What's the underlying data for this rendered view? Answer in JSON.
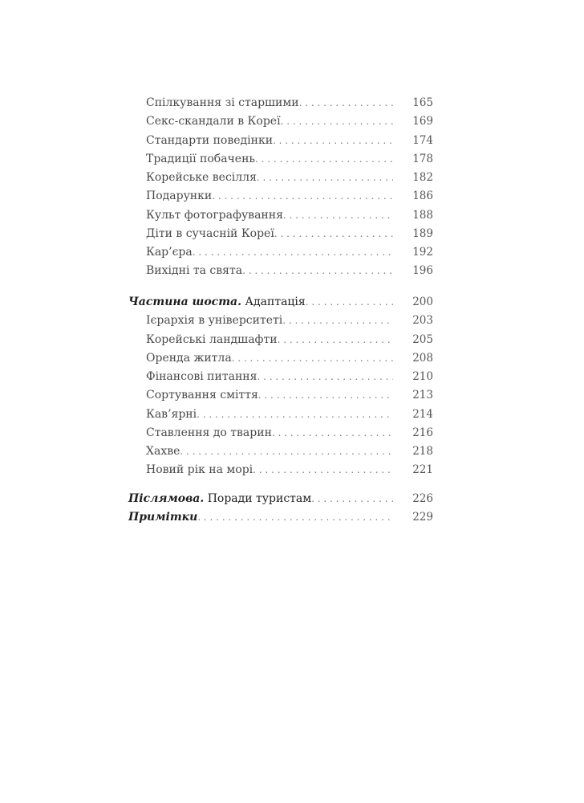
{
  "toc": {
    "group1": [
      {
        "title": "Спілкування зі старшими",
        "page": "165"
      },
      {
        "title": "Секс-скандали в Кореї",
        "page": "169"
      },
      {
        "title": "Стандарти поведінки",
        "page": "174"
      },
      {
        "title": "Традиції побачень",
        "page": "178"
      },
      {
        "title": "Корейське весілля",
        "page": "182"
      },
      {
        "title": "Подарунки",
        "page": "186"
      },
      {
        "title": "Культ фотографування",
        "page": "188"
      },
      {
        "title": "Діти в сучасній Кореї",
        "page": "189"
      },
      {
        "title": "Кар’єра",
        "page": "192"
      },
      {
        "title": "Вихідні та свята",
        "page": "196"
      }
    ],
    "part6": {
      "label_italic": "Частина шоста.",
      "label": " Адаптація",
      "page": "200"
    },
    "group2": [
      {
        "title": "Ієрархія в університеті",
        "page": "203"
      },
      {
        "title": "Корейські ландшафти",
        "page": "205"
      },
      {
        "title": "Оренда житла",
        "page": "208"
      },
      {
        "title": "Фінансові питання",
        "page": "210"
      },
      {
        "title": "Сортування сміття",
        "page": "213"
      },
      {
        "title": "Кав’ярні",
        "page": "214"
      },
      {
        "title": "Ставлення до тварин",
        "page": "216"
      },
      {
        "title": "Хахве",
        "page": "218"
      },
      {
        "title": "Новий рік на морі",
        "page": "221"
      }
    ],
    "afterword": {
      "label_italic": "Післямова.",
      "label": " Поради туристам",
      "page": "226"
    },
    "notes": {
      "label_italic": "Примітки",
      "page": "229"
    }
  }
}
